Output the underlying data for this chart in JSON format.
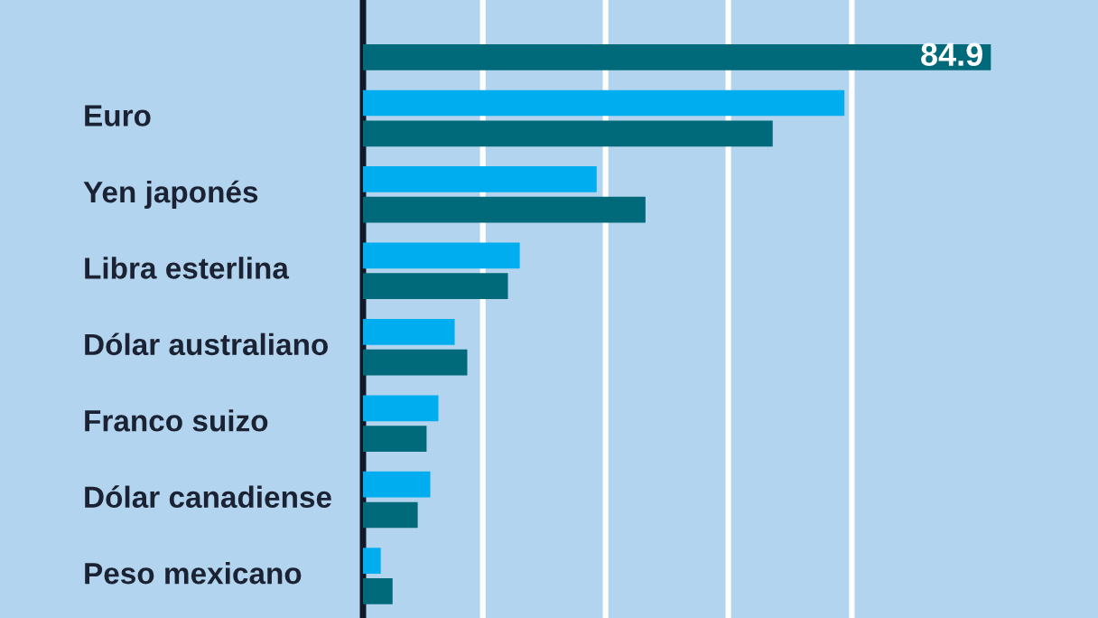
{
  "chart_data": {
    "type": "bar",
    "orientation": "horizontal",
    "categories": [
      null,
      "Euro",
      "Yen japonés",
      "Libra esterlina",
      "Dólar australiano",
      "Franco suizo",
      "Dólar canadiense",
      "Peso mexicano"
    ],
    "series": [
      {
        "color": "#00aeef",
        "values": [
          null,
          65.1,
          31.6,
          21.2,
          12.4,
          10.2,
          9.1,
          2.4
        ]
      },
      {
        "color": "#006a7a",
        "values": [
          84.9,
          55.4,
          38.2,
          19.6,
          14.1,
          8.6,
          7.4,
          4.0
        ],
        "value_labels": [
          "84.9",
          null,
          null,
          null,
          null,
          null,
          null,
          null
        ]
      }
    ],
    "xlim": [
      0,
      98.9
    ],
    "xticks": [
      {
        "value": 16.2,
        "label": null
      },
      {
        "value": 32.8,
        "label": null
      },
      {
        "value": 49.4,
        "label": null
      },
      {
        "value": 66.1,
        "label": null
      }
    ],
    "tick_labels": "y",
    "grid": "x",
    "legend": false
  }
}
